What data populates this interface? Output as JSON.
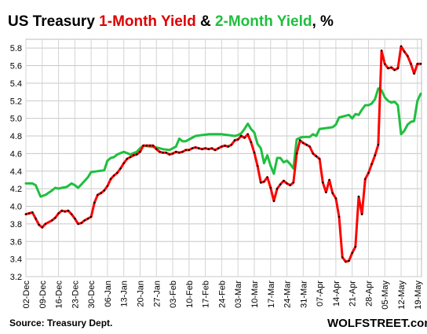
{
  "chart_data": {
    "type": "line",
    "title_parts": [
      {
        "text": "US Treasury ",
        "color": "#000000"
      },
      {
        "text": "1-Month Yield",
        "color": "#e00000"
      },
      {
        "text": " & ",
        "color": "#000000"
      },
      {
        "text": "2-Month Yield",
        "color": "#1fbf3f"
      },
      {
        "text": ", %",
        "color": "#000000"
      }
    ],
    "xlabel": "",
    "ylabel": "",
    "ylim": [
      3.2,
      5.9
    ],
    "yticks": [
      "3.2",
      "3.4",
      "3.6",
      "3.8",
      "4.0",
      "4.2",
      "4.4",
      "4.6",
      "4.8",
      "5.0",
      "5.2",
      "5.4",
      "5.6",
      "5.8"
    ],
    "x_ticks": [
      "02-Dec",
      "09-Dec",
      "16-Dec",
      "23-Dec",
      "30-Dec",
      "06-Jan",
      "13-Jan",
      "20-Jan",
      "27-Jan",
      "03-Feb",
      "10-Feb",
      "17-Feb",
      "24-Feb",
      "03-Mar",
      "10-Mar",
      "17-Mar",
      "24-Mar",
      "31-Mar",
      "07-Apr",
      "14-Apr",
      "21-Apr",
      "28-Apr",
      "05-May",
      "12-May",
      "19-May"
    ],
    "grid": true,
    "series": [
      {
        "color": "#ff0000",
        "marker_color": "#000000",
        "values": [
          [
            0,
            3.91
          ],
          [
            0.2,
            3.92
          ],
          [
            0.4,
            3.93
          ],
          [
            0.6,
            3.86
          ],
          [
            0.8,
            3.79
          ],
          [
            1.0,
            3.76
          ],
          [
            1.2,
            3.8
          ],
          [
            1.6,
            3.84
          ],
          [
            1.8,
            3.87
          ],
          [
            2.0,
            3.92
          ],
          [
            2.2,
            3.95
          ],
          [
            2.4,
            3.94
          ],
          [
            2.6,
            3.95
          ],
          [
            2.8,
            3.91
          ],
          [
            3.0,
            3.86
          ],
          [
            3.2,
            3.8
          ],
          [
            3.4,
            3.81
          ],
          [
            3.6,
            3.84
          ],
          [
            3.8,
            3.86
          ],
          [
            4.0,
            3.88
          ],
          [
            4.2,
            4.04
          ],
          [
            4.4,
            4.13
          ],
          [
            4.6,
            4.15
          ],
          [
            4.8,
            4.18
          ],
          [
            5.0,
            4.23
          ],
          [
            5.2,
            4.31
          ],
          [
            5.4,
            4.35
          ],
          [
            5.6,
            4.38
          ],
          [
            5.8,
            4.43
          ],
          [
            6.0,
            4.49
          ],
          [
            6.2,
            4.54
          ],
          [
            6.4,
            4.56
          ],
          [
            6.6,
            4.58
          ],
          [
            6.8,
            4.59
          ],
          [
            7.0,
            4.62
          ],
          [
            7.2,
            4.69
          ],
          [
            7.4,
            4.69
          ],
          [
            7.6,
            4.69
          ],
          [
            7.8,
            4.69
          ],
          [
            8.0,
            4.65
          ],
          [
            8.2,
            4.62
          ],
          [
            8.4,
            4.61
          ],
          [
            8.6,
            4.61
          ],
          [
            8.8,
            4.59
          ],
          [
            9.0,
            4.6
          ],
          [
            9.2,
            4.62
          ],
          [
            9.4,
            4.61
          ],
          [
            9.6,
            4.62
          ],
          [
            9.8,
            4.64
          ],
          [
            10.0,
            4.64
          ],
          [
            10.2,
            4.66
          ],
          [
            10.4,
            4.67
          ],
          [
            10.6,
            4.66
          ],
          [
            10.8,
            4.65
          ],
          [
            11.0,
            4.66
          ],
          [
            11.2,
            4.65
          ],
          [
            11.4,
            4.66
          ],
          [
            11.6,
            4.64
          ],
          [
            11.8,
            4.66
          ],
          [
            12.0,
            4.68
          ],
          [
            12.2,
            4.69
          ],
          [
            12.4,
            4.68
          ],
          [
            12.6,
            4.7
          ],
          [
            12.8,
            4.75
          ],
          [
            13.0,
            4.76
          ],
          [
            13.2,
            4.8
          ],
          [
            13.4,
            4.78
          ],
          [
            13.6,
            4.82
          ],
          [
            13.8,
            4.73
          ],
          [
            14.0,
            4.61
          ],
          [
            14.2,
            4.46
          ],
          [
            14.4,
            4.27
          ],
          [
            14.6,
            4.28
          ],
          [
            14.8,
            4.33
          ],
          [
            15.0,
            4.21
          ],
          [
            15.2,
            4.06
          ],
          [
            15.4,
            4.2
          ],
          [
            15.6,
            4.25
          ],
          [
            15.8,
            4.29
          ],
          [
            16.0,
            4.26
          ],
          [
            16.2,
            4.24
          ],
          [
            16.4,
            4.27
          ],
          [
            16.6,
            4.6
          ],
          [
            16.8,
            4.75
          ],
          [
            17.0,
            4.72
          ],
          [
            17.2,
            4.7
          ],
          [
            17.4,
            4.68
          ],
          [
            17.6,
            4.6
          ],
          [
            17.8,
            4.57
          ],
          [
            18.0,
            4.54
          ],
          [
            18.2,
            4.27
          ],
          [
            18.4,
            4.16
          ],
          [
            18.6,
            4.3
          ],
          [
            18.8,
            4.15
          ],
          [
            19.0,
            4.09
          ],
          [
            19.2,
            3.88
          ],
          [
            19.4,
            3.42
          ],
          [
            19.6,
            3.37
          ],
          [
            19.8,
            3.38
          ],
          [
            20.0,
            3.47
          ],
          [
            20.2,
            3.54
          ],
          [
            20.4,
            4.11
          ],
          [
            20.6,
            3.91
          ],
          [
            20.8,
            4.31
          ],
          [
            21.0,
            4.38
          ],
          [
            21.2,
            4.48
          ],
          [
            21.4,
            4.58
          ],
          [
            21.6,
            4.7
          ],
          [
            21.8,
            5.77
          ],
          [
            22.0,
            5.62
          ],
          [
            22.2,
            5.57
          ],
          [
            22.4,
            5.58
          ],
          [
            22.6,
            5.55
          ],
          [
            22.8,
            5.57
          ],
          [
            23.0,
            5.82
          ],
          [
            23.2,
            5.76
          ],
          [
            23.4,
            5.71
          ],
          [
            23.6,
            5.62
          ],
          [
            23.8,
            5.51
          ],
          [
            24.0,
            5.62
          ],
          [
            24.2,
            5.62
          ]
        ]
      },
      {
        "color": "#1fbf3f",
        "marker_color": null,
        "values": [
          [
            0,
            4.26
          ],
          [
            0.4,
            4.26
          ],
          [
            0.6,
            4.24
          ],
          [
            0.9,
            4.11
          ],
          [
            1.2,
            4.13
          ],
          [
            1.6,
            4.18
          ],
          [
            1.8,
            4.21
          ],
          [
            2.0,
            4.2
          ],
          [
            2.2,
            4.21
          ],
          [
            2.5,
            4.22
          ],
          [
            2.8,
            4.26
          ],
          [
            3.0,
            4.24
          ],
          [
            3.2,
            4.21
          ],
          [
            3.4,
            4.25
          ],
          [
            3.6,
            4.29
          ],
          [
            3.8,
            4.33
          ],
          [
            4.0,
            4.39
          ],
          [
            4.4,
            4.4
          ],
          [
            4.8,
            4.41
          ],
          [
            5.0,
            4.52
          ],
          [
            5.2,
            4.55
          ],
          [
            5.4,
            4.56
          ],
          [
            5.6,
            4.59
          ],
          [
            6.0,
            4.62
          ],
          [
            6.4,
            4.59
          ],
          [
            6.8,
            4.62
          ],
          [
            7.0,
            4.66
          ],
          [
            7.2,
            4.69
          ],
          [
            7.6,
            4.68
          ],
          [
            8.0,
            4.67
          ],
          [
            8.4,
            4.65
          ],
          [
            8.8,
            4.64
          ],
          [
            9.2,
            4.68
          ],
          [
            9.4,
            4.77
          ],
          [
            9.6,
            4.74
          ],
          [
            9.8,
            4.74
          ],
          [
            10.0,
            4.76
          ],
          [
            10.4,
            4.8
          ],
          [
            10.8,
            4.81
          ],
          [
            11.2,
            4.82
          ],
          [
            11.6,
            4.82
          ],
          [
            12.0,
            4.82
          ],
          [
            12.4,
            4.81
          ],
          [
            12.8,
            4.8
          ],
          [
            13.0,
            4.81
          ],
          [
            13.2,
            4.83
          ],
          [
            13.4,
            4.88
          ],
          [
            13.6,
            4.94
          ],
          [
            13.8,
            4.88
          ],
          [
            14.0,
            4.84
          ],
          [
            14.2,
            4.71
          ],
          [
            14.4,
            4.66
          ],
          [
            14.6,
            4.49
          ],
          [
            14.8,
            4.58
          ],
          [
            15.0,
            4.46
          ],
          [
            15.2,
            4.37
          ],
          [
            15.4,
            4.55
          ],
          [
            15.6,
            4.55
          ],
          [
            15.8,
            4.5
          ],
          [
            16.0,
            4.52
          ],
          [
            16.2,
            4.48
          ],
          [
            16.4,
            4.43
          ],
          [
            16.6,
            4.76
          ],
          [
            16.8,
            4.78
          ],
          [
            17.0,
            4.79
          ],
          [
            17.4,
            4.79
          ],
          [
            17.6,
            4.82
          ],
          [
            17.8,
            4.8
          ],
          [
            18.0,
            4.88
          ],
          [
            18.4,
            4.89
          ],
          [
            18.8,
            4.9
          ],
          [
            19.0,
            4.93
          ],
          [
            19.2,
            5.01
          ],
          [
            19.6,
            5.03
          ],
          [
            19.8,
            5.04
          ],
          [
            20.0,
            5.0
          ],
          [
            20.2,
            5.05
          ],
          [
            20.4,
            5.04
          ],
          [
            20.6,
            5.1
          ],
          [
            20.8,
            5.15
          ],
          [
            21.0,
            5.15
          ],
          [
            21.2,
            5.17
          ],
          [
            21.4,
            5.22
          ],
          [
            21.6,
            5.34
          ],
          [
            21.8,
            5.32
          ],
          [
            22.0,
            5.24
          ],
          [
            22.2,
            5.2
          ],
          [
            22.4,
            5.18
          ],
          [
            22.6,
            5.19
          ],
          [
            22.8,
            5.15
          ],
          [
            23.0,
            4.82
          ],
          [
            23.2,
            4.86
          ],
          [
            23.4,
            4.93
          ],
          [
            23.6,
            4.96
          ],
          [
            23.8,
            4.97
          ],
          [
            24.0,
            5.2
          ],
          [
            24.2,
            5.28
          ]
        ]
      }
    ]
  },
  "source": "Source: Treasury Dept.",
  "brand": "WOLFSTREET.com"
}
